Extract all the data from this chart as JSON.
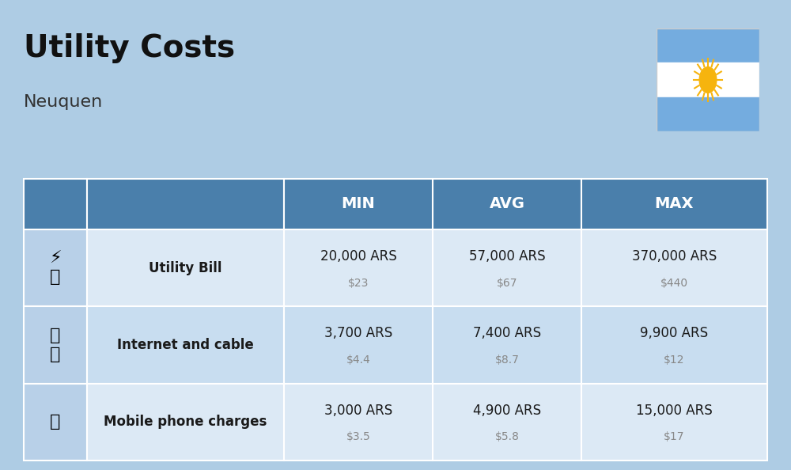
{
  "title": "Utility Costs",
  "subtitle": "Neuquen",
  "background_color": "#aecce4",
  "header_bg_color": "#4a7fab",
  "header_text_color": "#ffffff",
  "row_colors": [
    "#dce9f5",
    "#c8ddf0"
  ],
  "icon_col_color": "#b8d0e8",
  "name_col_color": "#d0e4f5",
  "cell_text_color": "#1a1a1a",
  "usd_text_color": "#888888",
  "headers": [
    "",
    "",
    "MIN",
    "AVG",
    "MAX"
  ],
  "rows": [
    {
      "label": "Utility Bill",
      "min_ars": "20,000 ARS",
      "min_usd": "$23",
      "avg_ars": "57,000 ARS",
      "avg_usd": "$67",
      "max_ars": "370,000 ARS",
      "max_usd": "$440"
    },
    {
      "label": "Internet and cable",
      "min_ars": "3,700 ARS",
      "min_usd": "$4.4",
      "avg_ars": "7,400 ARS",
      "avg_usd": "$8.7",
      "max_ars": "9,900 ARS",
      "max_usd": "$12"
    },
    {
      "label": "Mobile phone charges",
      "min_ars": "3,000 ARS",
      "min_usd": "$3.5",
      "avg_ars": "4,900 ARS",
      "avg_usd": "$5.8",
      "max_ars": "15,000 ARS",
      "max_usd": "$17"
    }
  ],
  "flag_colors": {
    "top": "#74acdf",
    "middle": "#ffffff",
    "bottom": "#74acdf",
    "sun": "#f6b40e"
  }
}
